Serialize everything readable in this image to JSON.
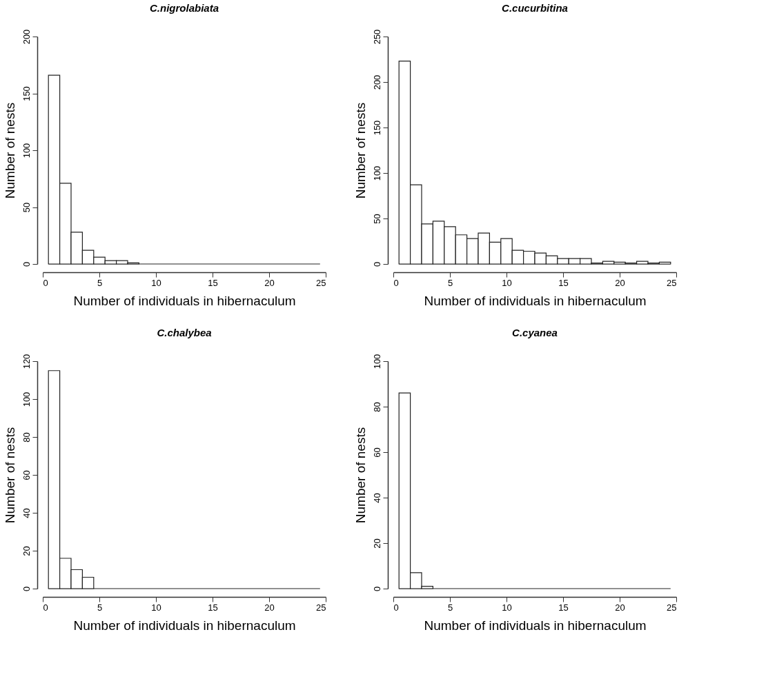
{
  "chart_data": [
    {
      "type": "histogram",
      "title": "C.nigrolabiata",
      "xlabel": "Number of individuals in hibernaculum",
      "ylabel": "Number of nests",
      "color": "#ffffff",
      "bins": [
        0.5,
        1.5,
        2.5,
        3.5,
        4.5,
        5.5,
        6.5,
        7.5,
        8.5,
        9.5,
        10.5,
        11.5,
        12.5,
        13.5,
        14.5,
        15.5,
        16.5,
        17.5,
        18.5,
        19.5,
        20.5,
        21.5,
        22.5,
        23.5,
        24.5
      ],
      "values": [
        166,
        71,
        28,
        12,
        6,
        3,
        3,
        1,
        0,
        0,
        0,
        0,
        0,
        0,
        0,
        0,
        0,
        0,
        0,
        0,
        0,
        0,
        0,
        0
      ],
      "xlim": [
        0,
        25
      ],
      "xticks": [
        0,
        5,
        10,
        15,
        20,
        25
      ],
      "ylim": [
        0,
        200
      ],
      "yticks": [
        0,
        50,
        100,
        150,
        200
      ]
    },
    {
      "type": "histogram",
      "title": "C.cucurbitina",
      "xlabel": "Number of individuals in hibernaculum",
      "ylabel": "Number of nests",
      "color": "#ffffff",
      "bins": [
        0.5,
        1.5,
        2.5,
        3.5,
        4.5,
        5.5,
        6.5,
        7.5,
        8.5,
        9.5,
        10.5,
        11.5,
        12.5,
        13.5,
        14.5,
        15.5,
        16.5,
        17.5,
        18.5,
        19.5,
        20.5,
        21.5,
        22.5,
        23.5,
        24.5
      ],
      "values": [
        223,
        87,
        44,
        47,
        41,
        32,
        28,
        34,
        24,
        28,
        15,
        14,
        12,
        9,
        6,
        6,
        6,
        1,
        3,
        2,
        1,
        3,
        1,
        2
      ],
      "xlim": [
        0,
        25
      ],
      "xticks": [
        0,
        5,
        10,
        15,
        20,
        25
      ],
      "ylim": [
        0,
        250
      ],
      "yticks": [
        0,
        50,
        100,
        150,
        200,
        250
      ]
    },
    {
      "type": "histogram",
      "title": "C.chalybea",
      "xlabel": "Number of individuals in hibernaculum",
      "ylabel": "Number of nests",
      "color": "#ffffff",
      "bins": [
        0.5,
        1.5,
        2.5,
        3.5,
        4.5,
        5.5,
        6.5,
        7.5,
        8.5,
        9.5,
        10.5,
        11.5,
        12.5,
        13.5,
        14.5,
        15.5,
        16.5,
        17.5,
        18.5,
        19.5,
        20.5,
        21.5,
        22.5,
        23.5,
        24.5
      ],
      "values": [
        115,
        16,
        10,
        6,
        0,
        0,
        0,
        0,
        0,
        0,
        0,
        0,
        0,
        0,
        0,
        0,
        0,
        0,
        0,
        0,
        0,
        0,
        0,
        0
      ],
      "xlim": [
        0,
        25
      ],
      "xticks": [
        0,
        5,
        10,
        15,
        20,
        25
      ],
      "ylim": [
        0,
        120
      ],
      "yticks": [
        0,
        20,
        40,
        60,
        80,
        100,
        120
      ]
    },
    {
      "type": "histogram",
      "title": "C.cyanea",
      "xlabel": "Number of individuals in hibernaculum",
      "ylabel": "Number of nests",
      "color": "#ffffff",
      "bins": [
        0.5,
        1.5,
        2.5,
        3.5,
        4.5,
        5.5,
        6.5,
        7.5,
        8.5,
        9.5,
        10.5,
        11.5,
        12.5,
        13.5,
        14.5,
        15.5,
        16.5,
        17.5,
        18.5,
        19.5,
        20.5,
        21.5,
        22.5,
        23.5,
        24.5
      ],
      "values": [
        86,
        7,
        1,
        0,
        0,
        0,
        0,
        0,
        0,
        0,
        0,
        0,
        0,
        0,
        0,
        0,
        0,
        0,
        0,
        0,
        0,
        0,
        0,
        0
      ],
      "xlim": [
        0,
        25
      ],
      "xticks": [
        0,
        5,
        10,
        15,
        20,
        25
      ],
      "ylim": [
        0,
        100
      ],
      "yticks": [
        0,
        20,
        40,
        60,
        80,
        100
      ]
    }
  ]
}
